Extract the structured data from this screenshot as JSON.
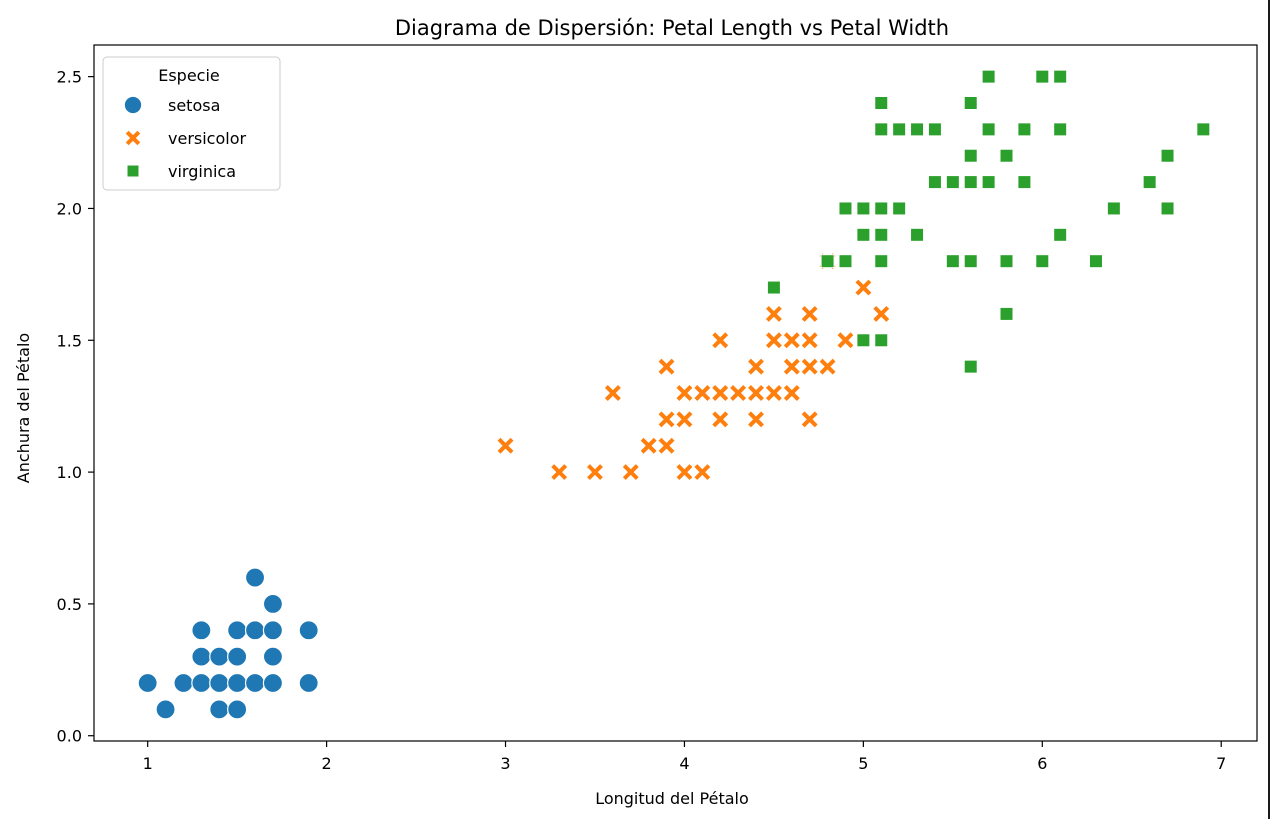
{
  "chart_data": {
    "type": "scatter",
    "title": "Diagrama de Dispersión: Petal Length vs Petal Width",
    "xlabel": "Longitud del Pétalo",
    "ylabel": "Anchura del Pétalo",
    "xlim": [
      0.7,
      7.2
    ],
    "ylim": [
      -0.02,
      2.62
    ],
    "xticks": [
      1,
      2,
      3,
      4,
      5,
      6,
      7
    ],
    "xtick_labels": [
      "1",
      "2",
      "3",
      "4",
      "5",
      "6",
      "7"
    ],
    "yticks": [
      0.0,
      0.5,
      1.0,
      1.5,
      2.0,
      2.5
    ],
    "ytick_labels": [
      "0.0",
      "0.5",
      "1.0",
      "1.5",
      "2.0",
      "2.5"
    ],
    "grid": false,
    "legend": {
      "title": "Especie",
      "placement": "top-left"
    },
    "series": [
      {
        "name": "setosa",
        "color": "#1f77b4",
        "marker": "circle",
        "points": [
          [
            1.0,
            0.2
          ],
          [
            1.1,
            0.1
          ],
          [
            1.2,
            0.2
          ],
          [
            1.3,
            0.4
          ],
          [
            1.3,
            0.3
          ],
          [
            1.3,
            0.2
          ],
          [
            1.4,
            0.3
          ],
          [
            1.4,
            0.2
          ],
          [
            1.4,
            0.1
          ],
          [
            1.5,
            0.4
          ],
          [
            1.5,
            0.3
          ],
          [
            1.5,
            0.2
          ],
          [
            1.5,
            0.1
          ],
          [
            1.6,
            0.6
          ],
          [
            1.6,
            0.4
          ],
          [
            1.6,
            0.2
          ],
          [
            1.7,
            0.5
          ],
          [
            1.7,
            0.4
          ],
          [
            1.7,
            0.3
          ],
          [
            1.7,
            0.2
          ],
          [
            1.9,
            0.4
          ],
          [
            1.9,
            0.2
          ]
        ]
      },
      {
        "name": "versicolor",
        "color": "#ff7f0e",
        "marker": "x",
        "points": [
          [
            3.0,
            1.1
          ],
          [
            3.3,
            1.0
          ],
          [
            3.5,
            1.0
          ],
          [
            3.6,
            1.3
          ],
          [
            3.7,
            1.0
          ],
          [
            3.8,
            1.1
          ],
          [
            3.9,
            1.4
          ],
          [
            3.9,
            1.2
          ],
          [
            3.9,
            1.1
          ],
          [
            4.0,
            1.3
          ],
          [
            4.0,
            1.2
          ],
          [
            4.0,
            1.0
          ],
          [
            4.1,
            1.3
          ],
          [
            4.1,
            1.0
          ],
          [
            4.2,
            1.5
          ],
          [
            4.2,
            1.3
          ],
          [
            4.2,
            1.2
          ],
          [
            4.3,
            1.3
          ],
          [
            4.4,
            1.4
          ],
          [
            4.4,
            1.3
          ],
          [
            4.4,
            1.2
          ],
          [
            4.5,
            1.6
          ],
          [
            4.5,
            1.5
          ],
          [
            4.5,
            1.3
          ],
          [
            4.6,
            1.5
          ],
          [
            4.6,
            1.4
          ],
          [
            4.6,
            1.3
          ],
          [
            4.7,
            1.6
          ],
          [
            4.7,
            1.5
          ],
          [
            4.7,
            1.4
          ],
          [
            4.7,
            1.2
          ],
          [
            4.8,
            1.8
          ],
          [
            4.8,
            1.4
          ],
          [
            4.9,
            1.5
          ],
          [
            5.0,
            1.7
          ],
          [
            5.1,
            1.6
          ]
        ]
      },
      {
        "name": "virginica",
        "color": "#2ca02c",
        "marker": "square",
        "points": [
          [
            4.5,
            1.7
          ],
          [
            4.8,
            1.8
          ],
          [
            4.9,
            2.0
          ],
          [
            4.9,
            1.8
          ],
          [
            5.0,
            2.0
          ],
          [
            5.0,
            1.9
          ],
          [
            5.0,
            1.5
          ],
          [
            5.1,
            2.4
          ],
          [
            5.1,
            2.3
          ],
          [
            5.1,
            2.0
          ],
          [
            5.1,
            1.9
          ],
          [
            5.1,
            1.8
          ],
          [
            5.1,
            1.5
          ],
          [
            5.2,
            2.3
          ],
          [
            5.2,
            2.0
          ],
          [
            5.3,
            2.3
          ],
          [
            5.3,
            1.9
          ],
          [
            5.4,
            2.3
          ],
          [
            5.4,
            2.1
          ],
          [
            5.5,
            2.1
          ],
          [
            5.5,
            1.8
          ],
          [
            5.6,
            2.4
          ],
          [
            5.6,
            2.2
          ],
          [
            5.6,
            2.1
          ],
          [
            5.6,
            1.8
          ],
          [
            5.6,
            1.4
          ],
          [
            5.7,
            2.5
          ],
          [
            5.7,
            2.3
          ],
          [
            5.7,
            2.1
          ],
          [
            5.8,
            2.2
          ],
          [
            5.8,
            1.8
          ],
          [
            5.8,
            1.6
          ],
          [
            5.9,
            2.3
          ],
          [
            5.9,
            2.1
          ],
          [
            6.0,
            2.5
          ],
          [
            6.0,
            1.8
          ],
          [
            6.1,
            2.5
          ],
          [
            6.1,
            2.3
          ],
          [
            6.1,
            1.9
          ],
          [
            6.3,
            1.8
          ],
          [
            6.4,
            2.0
          ],
          [
            6.6,
            2.1
          ],
          [
            6.7,
            2.2
          ],
          [
            6.7,
            2.0
          ],
          [
            6.9,
            2.3
          ]
        ]
      }
    ]
  }
}
